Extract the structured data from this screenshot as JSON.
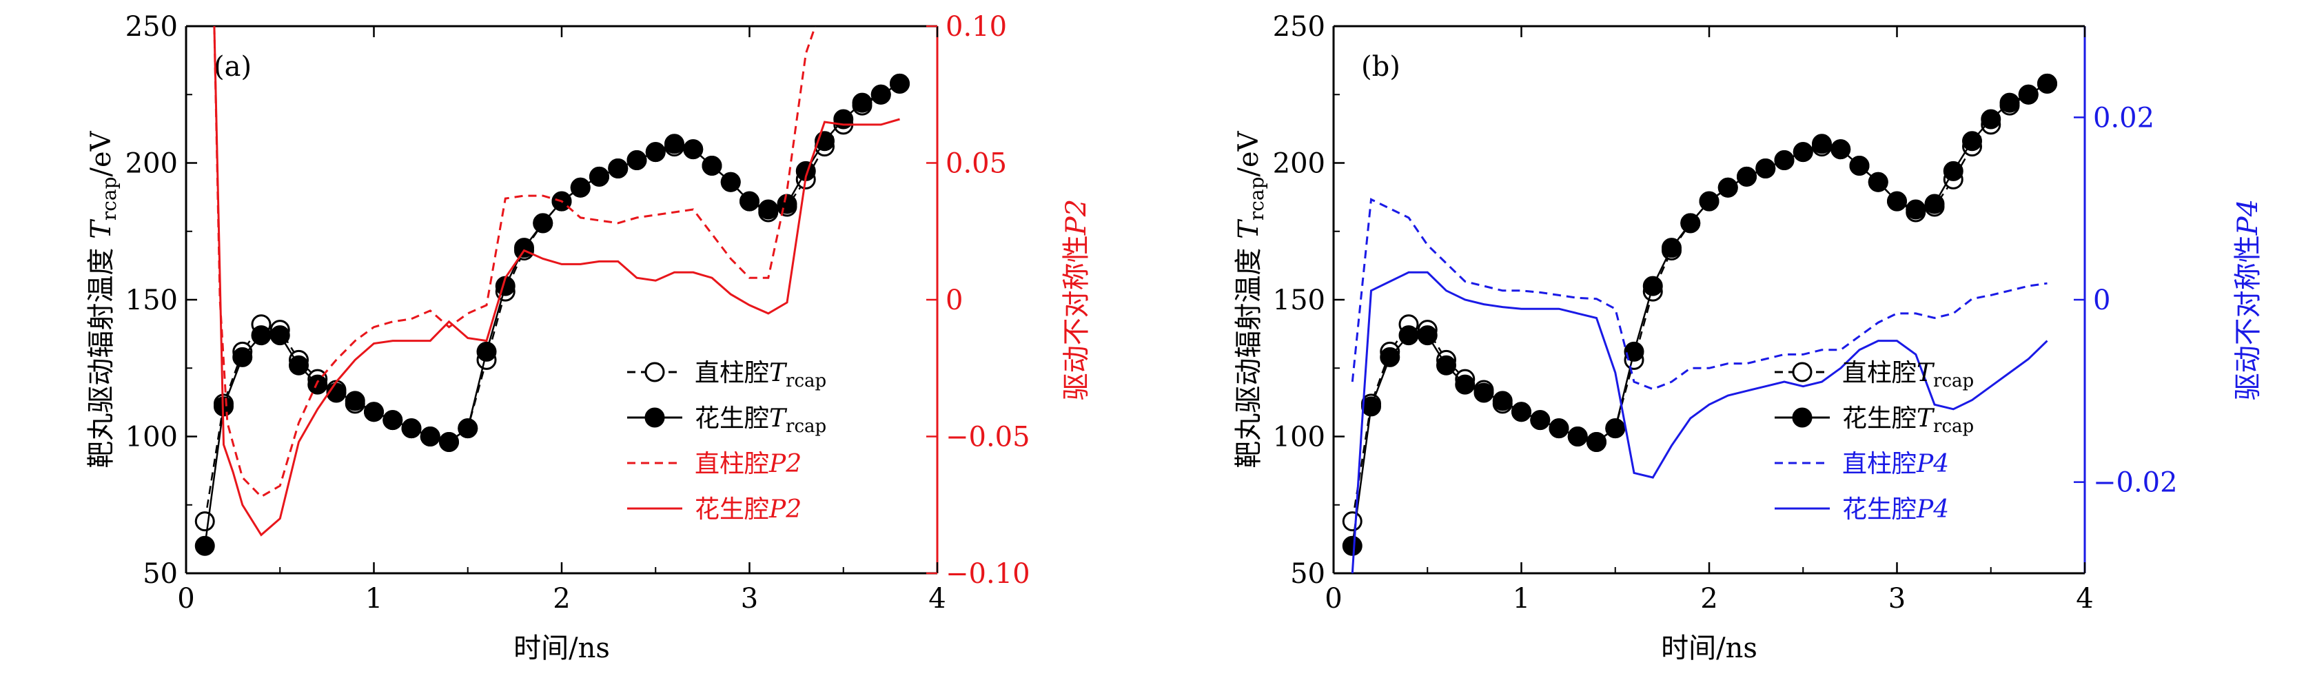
{
  "chart_data": [
    {
      "type": "line",
      "panel_label": "(a)",
      "xlabel": "时间/ns",
      "ylabel": "靶丸驱动辐射温度 Trcap/eV",
      "ylabel_parts": {
        "text": "靶丸驱动辐射温度 ",
        "var": "T",
        "sub": "rcap",
        "unit": "/eV"
      },
      "y2label": "驱动不对称性P2",
      "y2label_parts": {
        "text": "驱动不对称性",
        "var": "P2"
      },
      "xlim": [
        0,
        4
      ],
      "ylim": [
        50,
        250
      ],
      "y2lim": [
        -0.1,
        0.1
      ],
      "xticks": [
        0,
        1,
        2,
        3,
        4
      ],
      "xtick_labels": [
        "0",
        "1",
        "2",
        "3",
        "4"
      ],
      "yticks": [
        50,
        100,
        150,
        200,
        250
      ],
      "ytick_labels": [
        "50",
        "100",
        "150",
        "200",
        "250"
      ],
      "y2ticks": [
        -0.1,
        -0.05,
        0,
        0.05,
        0.1
      ],
      "y2tick_labels": [
        "−0.10",
        "−0.05",
        "0",
        "0.05",
        "0.10"
      ],
      "y2color": "#e8161b",
      "legend_position": "lower-right",
      "series": [
        {
          "name": "直柱腔Trcap",
          "legend_text": "直柱腔",
          "legend_var": "T",
          "legend_sub": "rcap",
          "axis": "y",
          "style": "open-circle-dashed",
          "color": "#000000",
          "x": [
            0.1,
            0.2,
            0.3,
            0.4,
            0.5,
            0.6,
            0.7,
            0.8,
            0.9,
            1.0,
            1.1,
            1.2,
            1.3,
            1.4,
            1.5,
            1.6,
            1.7,
            1.8,
            1.9,
            2.0,
            2.1,
            2.2,
            2.3,
            2.4,
            2.5,
            2.6,
            2.7,
            2.8,
            2.9,
            3.0,
            3.1,
            3.2,
            3.3,
            3.4,
            3.5,
            3.6,
            3.7,
            3.8
          ],
          "y": [
            69,
            112,
            131,
            141,
            139,
            128,
            121,
            117,
            112,
            109,
            106,
            103,
            100,
            98,
            103,
            128,
            153,
            168,
            178,
            186,
            191,
            195,
            198,
            201,
            204,
            206,
            205,
            199,
            193,
            186,
            182,
            184,
            194,
            206,
            214,
            221,
            225,
            229
          ]
        },
        {
          "name": "花生腔Trcap",
          "legend_text": "花生腔",
          "legend_var": "T",
          "legend_sub": "rcap",
          "axis": "y",
          "style": "filled-circle-solid",
          "color": "#000000",
          "x": [
            0.1,
            0.2,
            0.3,
            0.4,
            0.5,
            0.6,
            0.7,
            0.8,
            0.9,
            1.0,
            1.1,
            1.2,
            1.3,
            1.4,
            1.5,
            1.6,
            1.7,
            1.8,
            1.9,
            2.0,
            2.1,
            2.2,
            2.3,
            2.4,
            2.5,
            2.6,
            2.7,
            2.8,
            2.9,
            3.0,
            3.1,
            3.2,
            3.3,
            3.4,
            3.5,
            3.6,
            3.7,
            3.8
          ],
          "y": [
            60,
            111,
            129,
            137,
            137,
            126,
            119,
            116,
            113,
            109,
            106,
            103,
            100,
            98,
            103,
            131,
            155,
            169,
            178,
            186,
            191,
            195,
            198,
            201,
            204,
            207,
            205,
            199,
            193,
            186,
            183,
            185,
            197,
            208,
            216,
            222,
            225,
            229
          ]
        },
        {
          "name": "直柱腔P2",
          "legend_text": "直柱腔",
          "legend_var": "P2",
          "axis": "y2",
          "style": "dashed",
          "color": "#e8161b",
          "x": [
            0.15,
            0.18,
            0.22,
            0.3,
            0.4,
            0.5,
            0.6,
            0.7,
            0.8,
            0.9,
            1.0,
            1.1,
            1.2,
            1.3,
            1.4,
            1.5,
            1.6,
            1.7,
            1.8,
            1.9,
            2.0,
            2.1,
            2.2,
            2.3,
            2.4,
            2.5,
            2.6,
            2.7,
            2.8,
            2.9,
            3.0,
            3.1,
            3.2,
            3.3,
            3.35
          ],
          "y": [
            0.1,
            0.0,
            -0.045,
            -0.065,
            -0.072,
            -0.068,
            -0.045,
            -0.03,
            -0.022,
            -0.015,
            -0.01,
            -0.008,
            -0.007,
            -0.004,
            -0.01,
            -0.005,
            -0.002,
            0.037,
            0.038,
            0.038,
            0.036,
            0.03,
            0.029,
            0.028,
            0.03,
            0.031,
            0.032,
            0.033,
            0.024,
            0.015,
            0.008,
            0.008,
            0.04,
            0.09,
            0.1
          ]
        },
        {
          "name": "花生腔P2",
          "legend_text": "花生腔",
          "legend_var": "P2",
          "axis": "y2",
          "style": "solid",
          "color": "#e8161b",
          "x": [
            0.15,
            0.2,
            0.25,
            0.3,
            0.4,
            0.5,
            0.6,
            0.7,
            0.8,
            0.9,
            1.0,
            1.1,
            1.2,
            1.3,
            1.4,
            1.5,
            1.6,
            1.7,
            1.8,
            1.9,
            2.0,
            2.1,
            2.2,
            2.3,
            2.4,
            2.5,
            2.6,
            2.7,
            2.8,
            2.9,
            3.0,
            3.1,
            3.2,
            3.3,
            3.4,
            3.5,
            3.6,
            3.7,
            3.8
          ],
          "y": [
            0.1,
            -0.053,
            -0.063,
            -0.075,
            -0.086,
            -0.08,
            -0.052,
            -0.04,
            -0.03,
            -0.022,
            -0.016,
            -0.015,
            -0.015,
            -0.015,
            -0.008,
            -0.014,
            -0.015,
            0.008,
            0.018,
            0.015,
            0.013,
            0.013,
            0.014,
            0.014,
            0.008,
            0.007,
            0.01,
            0.01,
            0.008,
            0.002,
            -0.002,
            -0.005,
            -0.001,
            0.045,
            0.065,
            0.064,
            0.064,
            0.064,
            0.066
          ]
        }
      ]
    },
    {
      "type": "line",
      "panel_label": "(b)",
      "xlabel": "时间/ns",
      "ylabel": "靶丸驱动辐射温度 Trcap/eV",
      "ylabel_parts": {
        "text": "靶丸驱动辐射温度 ",
        "var": "T",
        "sub": "rcap",
        "unit": "/eV"
      },
      "y2label": "驱动不对称性P4",
      "y2label_parts": {
        "text": "驱动不对称性",
        "var": "P4"
      },
      "xlim": [
        0,
        4
      ],
      "ylim": [
        50,
        250
      ],
      "y2lim": [
        -0.03,
        0.03
      ],
      "xticks": [
        0,
        1,
        2,
        3,
        4
      ],
      "xtick_labels": [
        "0",
        "1",
        "2",
        "3",
        "4"
      ],
      "yticks": [
        50,
        100,
        150,
        200,
        250
      ],
      "ytick_labels": [
        "50",
        "100",
        "150",
        "200",
        "250"
      ],
      "y2ticks": [
        -0.02,
        0,
        0.02
      ],
      "y2tick_labels": [
        "−0.02",
        "0",
        "0.02"
      ],
      "y2color": "#1a1ae6",
      "legend_position": "lower-right",
      "series": [
        {
          "name": "直柱腔Trcap",
          "legend_text": "直柱腔",
          "legend_var": "T",
          "legend_sub": "rcap",
          "axis": "y",
          "style": "open-circle-dashed",
          "color": "#000000",
          "x": [
            0.1,
            0.2,
            0.3,
            0.4,
            0.5,
            0.6,
            0.7,
            0.8,
            0.9,
            1.0,
            1.1,
            1.2,
            1.3,
            1.4,
            1.5,
            1.6,
            1.7,
            1.8,
            1.9,
            2.0,
            2.1,
            2.2,
            2.3,
            2.4,
            2.5,
            2.6,
            2.7,
            2.8,
            2.9,
            3.0,
            3.1,
            3.2,
            3.3,
            3.4,
            3.5,
            3.6,
            3.7,
            3.8
          ],
          "y": [
            69,
            112,
            131,
            141,
            139,
            128,
            121,
            117,
            112,
            109,
            106,
            103,
            100,
            98,
            103,
            128,
            153,
            168,
            178,
            186,
            191,
            195,
            198,
            201,
            204,
            206,
            205,
            199,
            193,
            186,
            182,
            184,
            194,
            206,
            214,
            221,
            225,
            229
          ]
        },
        {
          "name": "花生腔Trcap",
          "legend_text": "花生腔",
          "legend_var": "T",
          "legend_sub": "rcap",
          "axis": "y",
          "style": "filled-circle-solid",
          "color": "#000000",
          "x": [
            0.1,
            0.2,
            0.3,
            0.4,
            0.5,
            0.6,
            0.7,
            0.8,
            0.9,
            1.0,
            1.1,
            1.2,
            1.3,
            1.4,
            1.5,
            1.6,
            1.7,
            1.8,
            1.9,
            2.0,
            2.1,
            2.2,
            2.3,
            2.4,
            2.5,
            2.6,
            2.7,
            2.8,
            2.9,
            3.0,
            3.1,
            3.2,
            3.3,
            3.4,
            3.5,
            3.6,
            3.7,
            3.8
          ],
          "y": [
            60,
            111,
            129,
            137,
            137,
            126,
            119,
            116,
            113,
            109,
            106,
            103,
            100,
            98,
            103,
            131,
            155,
            169,
            178,
            186,
            191,
            195,
            198,
            201,
            204,
            207,
            205,
            199,
            193,
            186,
            183,
            185,
            197,
            208,
            216,
            222,
            225,
            229
          ]
        },
        {
          "name": "直柱腔P4",
          "legend_text": "直柱腔",
          "legend_var": "P4",
          "axis": "y2",
          "style": "dashed",
          "color": "#1a1ae6",
          "x": [
            0.1,
            0.2,
            0.3,
            0.4,
            0.5,
            0.6,
            0.7,
            0.8,
            0.9,
            1.0,
            1.1,
            1.2,
            1.3,
            1.4,
            1.5,
            1.6,
            1.7,
            1.8,
            1.9,
            2.0,
            2.1,
            2.2,
            2.3,
            2.4,
            2.5,
            2.6,
            2.7,
            2.8,
            2.9,
            3.0,
            3.1,
            3.2,
            3.3,
            3.4,
            3.5,
            3.6,
            3.7,
            3.8
          ],
          "y": [
            -0.009,
            0.011,
            0.01,
            0.009,
            0.006,
            0.004,
            0.002,
            0.0015,
            0.001,
            0.001,
            0.0008,
            0.0005,
            0.0002,
            0.0001,
            -0.001,
            -0.009,
            -0.0098,
            -0.009,
            -0.0075,
            -0.0075,
            -0.007,
            -0.007,
            -0.0065,
            -0.006,
            -0.006,
            -0.0055,
            -0.0055,
            -0.004,
            -0.0025,
            -0.0015,
            -0.0015,
            -0.002,
            -0.0015,
            0.0001,
            0.0005,
            0.001,
            0.0015,
            0.0018
          ]
        },
        {
          "name": "花生腔P4",
          "legend_text": "花生腔",
          "legend_var": "P4",
          "axis": "y2",
          "style": "solid",
          "color": "#1a1ae6",
          "x": [
            0.1,
            0.15,
            0.2,
            0.3,
            0.4,
            0.5,
            0.6,
            0.7,
            0.8,
            0.9,
            1.0,
            1.1,
            1.2,
            1.3,
            1.4,
            1.5,
            1.6,
            1.7,
            1.8,
            1.9,
            2.0,
            2.1,
            2.2,
            2.3,
            2.4,
            2.5,
            2.6,
            2.7,
            2.8,
            2.9,
            3.0,
            3.1,
            3.2,
            3.3,
            3.4,
            3.5,
            3.6,
            3.7,
            3.8
          ],
          "y": [
            -0.03,
            -0.014,
            0.001,
            0.002,
            0.003,
            0.003,
            0.001,
            0.0,
            -0.0005,
            -0.0008,
            -0.001,
            -0.001,
            -0.001,
            -0.0015,
            -0.002,
            -0.008,
            -0.019,
            -0.0195,
            -0.016,
            -0.013,
            -0.0115,
            -0.0105,
            -0.01,
            -0.0095,
            -0.009,
            -0.0095,
            -0.009,
            -0.0075,
            -0.0055,
            -0.0045,
            -0.0045,
            -0.006,
            -0.0115,
            -0.012,
            -0.011,
            -0.0095,
            -0.008,
            -0.0065,
            -0.0045
          ]
        }
      ]
    }
  ]
}
